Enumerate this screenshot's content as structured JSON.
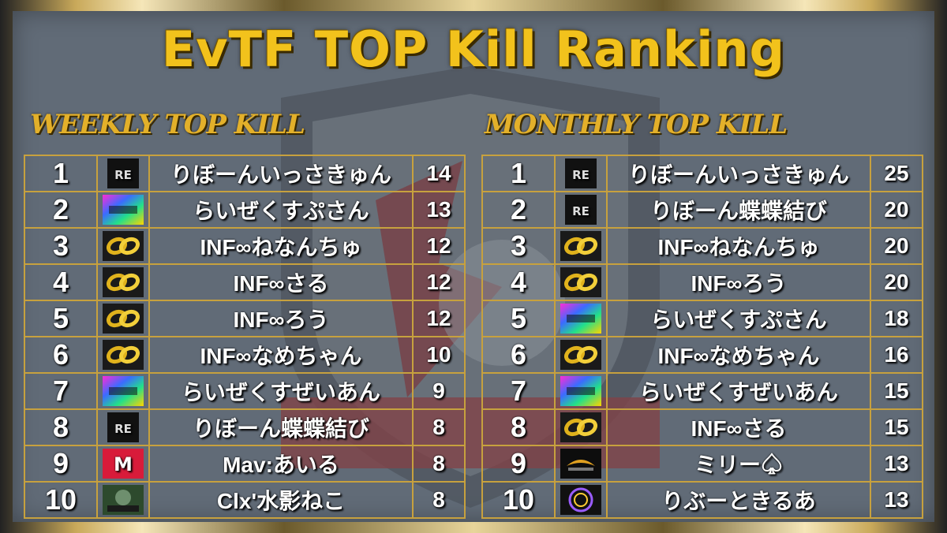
{
  "title": "EvTF TOP Kill Ranking",
  "weekly": {
    "heading": "WEEKLY TOP KILL",
    "rows": [
      {
        "rank": "1",
        "logo": "reborn-logo",
        "name": "りぼーんいっさきゅん",
        "kills": "14"
      },
      {
        "rank": "2",
        "logo": "rainbow-logo",
        "name": "らいぜくすぷさん",
        "kills": "13"
      },
      {
        "rank": "3",
        "logo": "infinity-logo",
        "name": "INF∞ねなんちゅ",
        "kills": "12"
      },
      {
        "rank": "4",
        "logo": "infinity-logo",
        "name": "INF∞さる",
        "kills": "12"
      },
      {
        "rank": "5",
        "logo": "infinity-logo",
        "name": "INF∞ろう",
        "kills": "12"
      },
      {
        "rank": "6",
        "logo": "infinity-logo",
        "name": "INF∞なめちゃん",
        "kills": "10"
      },
      {
        "rank": "7",
        "logo": "rainbow-logo",
        "name": "らいぜくすぜいあん",
        "kills": "9"
      },
      {
        "rank": "8",
        "logo": "reborn-logo",
        "name": "りぼーん蝶蝶結び",
        "kills": "8"
      },
      {
        "rank": "9",
        "logo": "mav-logo",
        "name": "Mav:あいる",
        "kills": "8"
      },
      {
        "rank": "10",
        "logo": "gaming-logo",
        "name": "Clx'水影ねこ",
        "kills": "8"
      }
    ]
  },
  "monthly": {
    "heading": "MONTHLY TOP KILL",
    "rows": [
      {
        "rank": "1",
        "logo": "reborn-logo",
        "name": "りぼーんいっさきゅん",
        "kills": "25"
      },
      {
        "rank": "2",
        "logo": "reborn-logo",
        "name": "りぼーん蝶蝶結び",
        "kills": "20"
      },
      {
        "rank": "3",
        "logo": "infinity-logo",
        "name": "INF∞ねなんちゅ",
        "kills": "20"
      },
      {
        "rank": "4",
        "logo": "infinity-logo",
        "name": "INF∞ろう",
        "kills": "20"
      },
      {
        "rank": "5",
        "logo": "rainbow-logo",
        "name": "らいぜくすぷさん",
        "kills": "18"
      },
      {
        "rank": "6",
        "logo": "infinity-logo",
        "name": "INF∞なめちゃん",
        "kills": "16"
      },
      {
        "rank": "7",
        "logo": "rainbow-logo",
        "name": "らいぜくすぜいあん",
        "kills": "15"
      },
      {
        "rank": "8",
        "logo": "infinity-logo",
        "name": "INF∞さる",
        "kills": "15"
      },
      {
        "rank": "9",
        "logo": "dark-logo",
        "name": "ミリー♤",
        "kills": "13"
      },
      {
        "rank": "10",
        "logo": "circle-logo",
        "name": "りぶーときるあ",
        "kills": "13"
      }
    ]
  },
  "colors": {
    "gold": "#f2c21c",
    "border": "#c7a13e",
    "panel": "#616b77"
  }
}
